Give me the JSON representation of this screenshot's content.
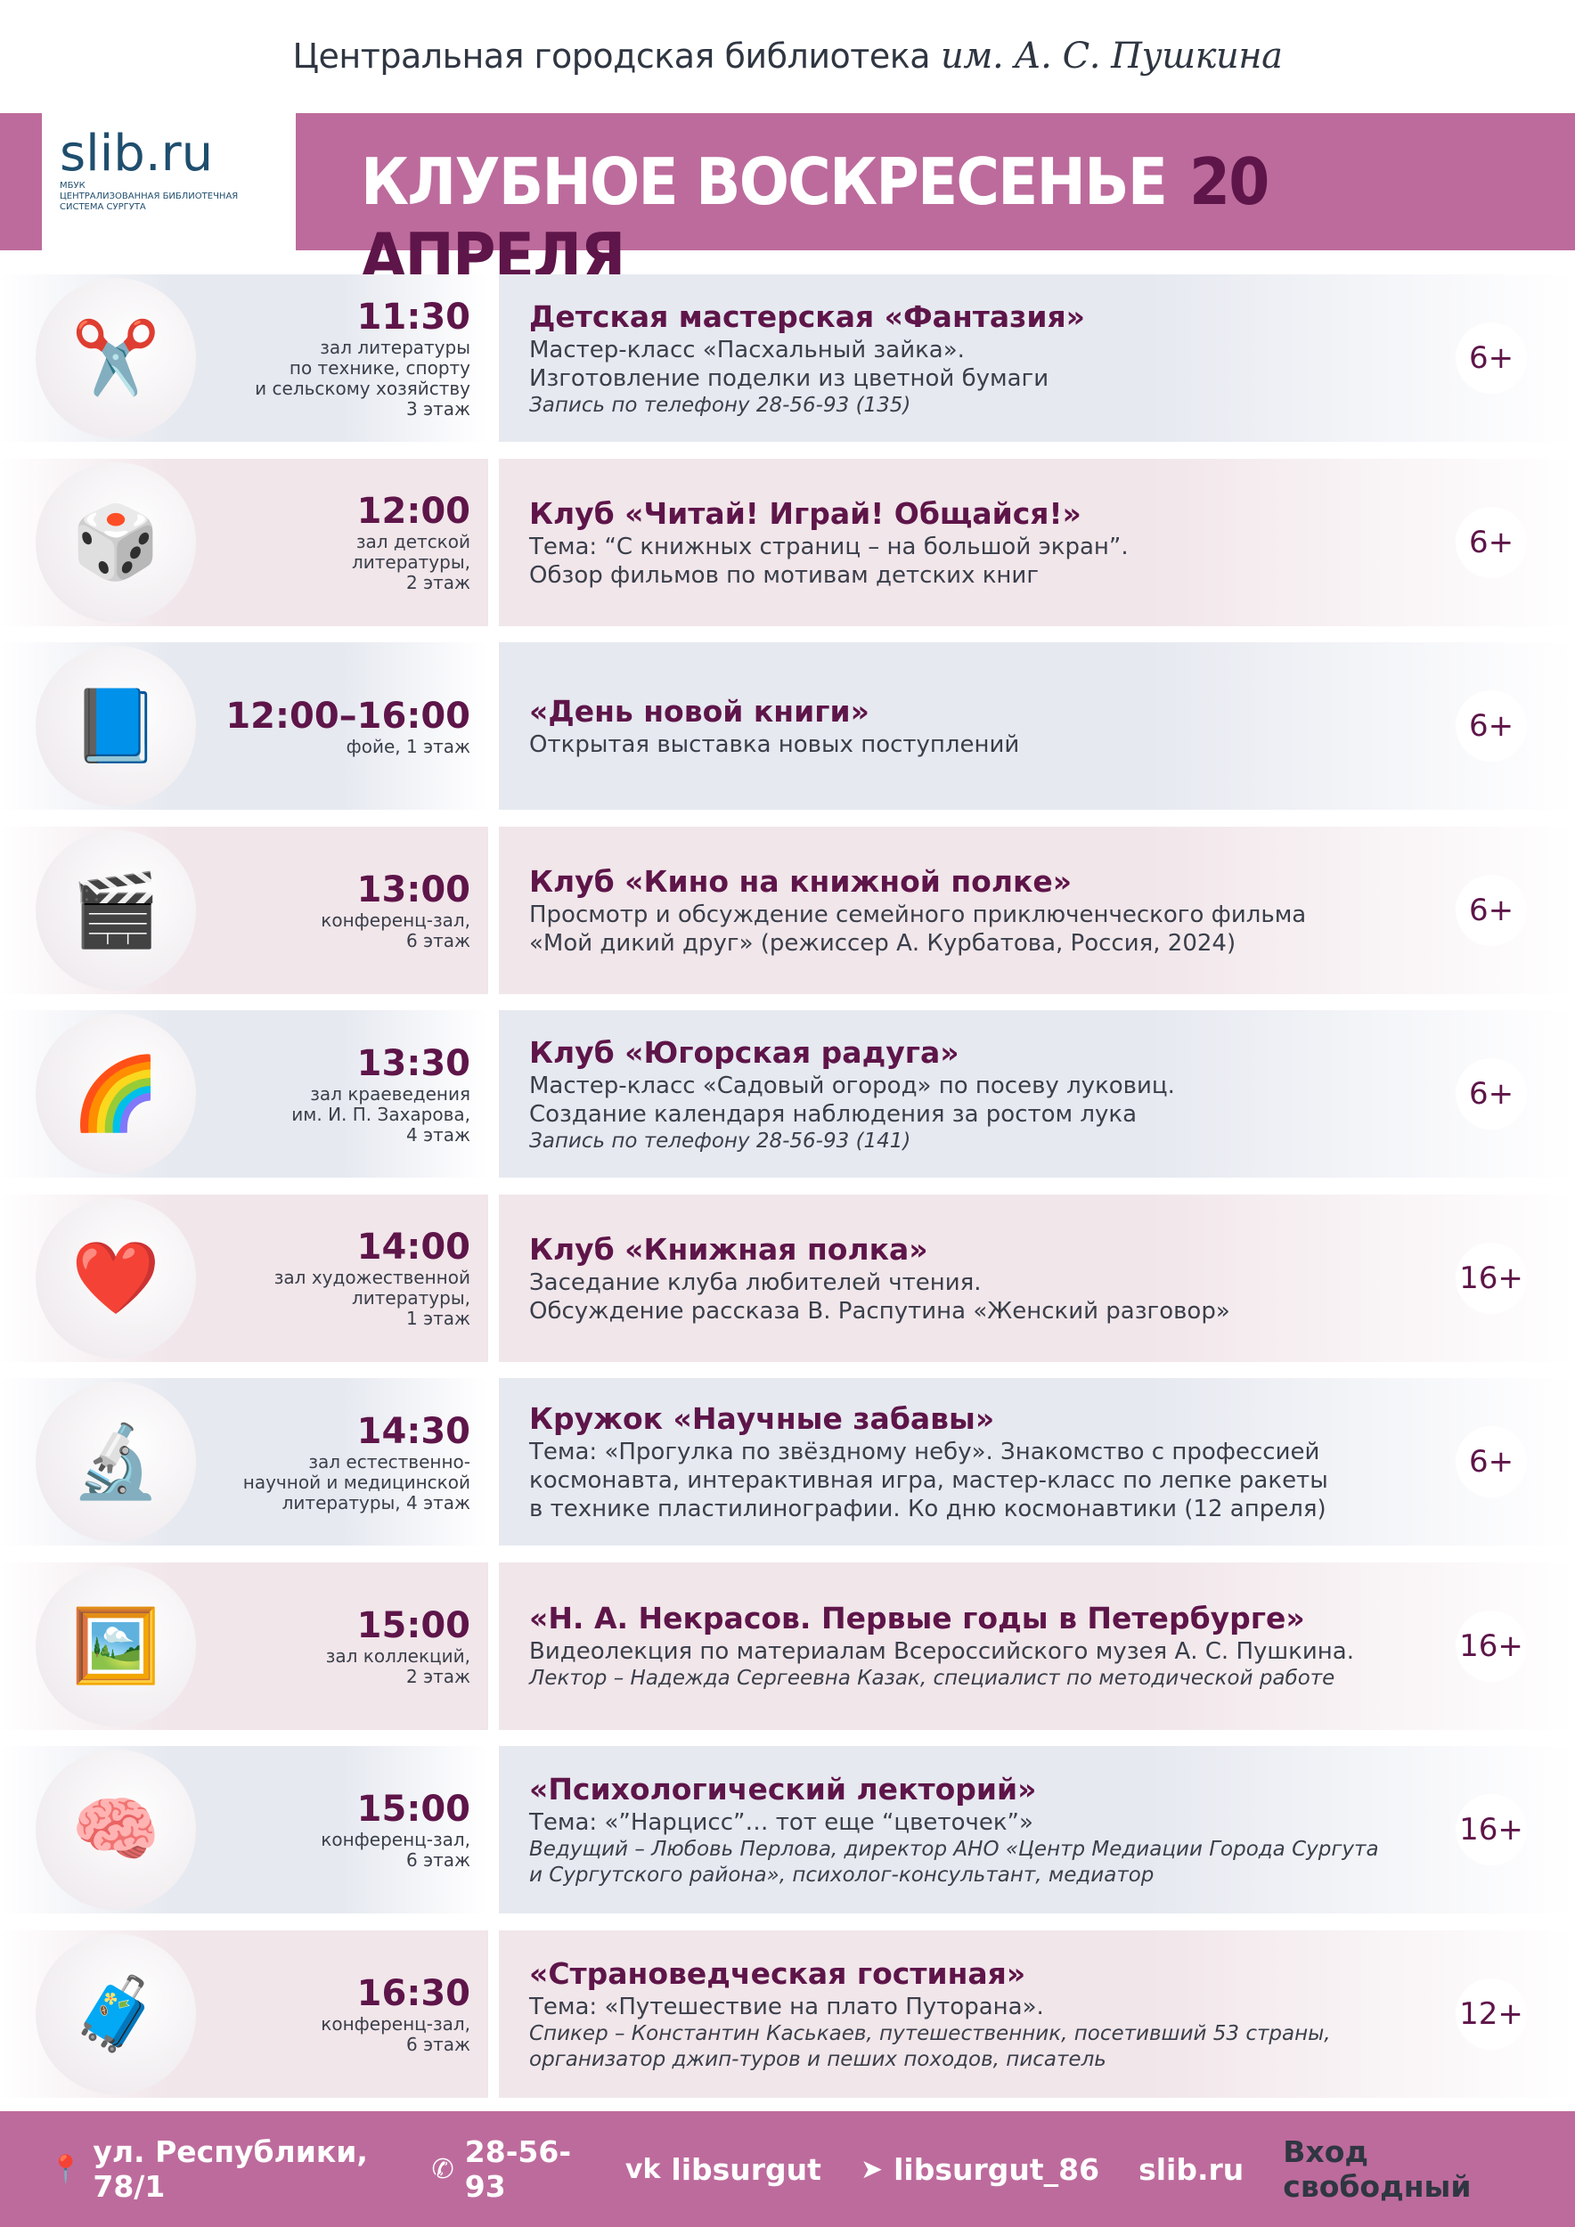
{
  "header": {
    "library": "Центральная городская библиотека",
    "signature": "им. А. С. Пушкина"
  },
  "banner": {
    "logo_mark": "slib",
    "logo_domain": ".ru",
    "logo_sub": [
      "МБУК",
      "ЦЕНТРАЛИЗОВАННАЯ БИБЛИОТЕЧНАЯ",
      "СИСТЕМА СУРГУТА"
    ],
    "title": "КЛУБНОЕ ВОСКРЕСЕНЬЕ",
    "date": "20 АПРЕЛЯ"
  },
  "colors": {
    "accent": "#bd6b9c",
    "dark": "#5e1549",
    "row_blue": "#e6e9f0",
    "row_pink": "#f1e6ea"
  },
  "events": [
    {
      "icon": "scissors-paper-icon",
      "glyph": "✂️",
      "time": "11:30",
      "location": [
        "зал литературы",
        "по технике, спорту",
        "и сельскому хозяйству",
        "3 этаж"
      ],
      "title": "Детская мастерская «Фантазия»",
      "desc": [
        "Мастер-класс «Пасхальный зайка».",
        "Изготовление поделки из цветной бумаги"
      ],
      "note": [
        "Запись по телефону 28-56-93 (135)"
      ],
      "age": "6+"
    },
    {
      "icon": "dice-icon",
      "glyph": "🎲",
      "time": "12:00",
      "location": [
        "зал детской",
        "литературы,",
        "2 этаж"
      ],
      "title": "Клуб «Читай! Играй! Общайся!»",
      "desc": [
        "Тема: “С книжных страниц – на большой экран”.",
        "Обзор фильмов по мотивам детских книг"
      ],
      "note": [],
      "age": "6+"
    },
    {
      "icon": "new-book-icon",
      "glyph": "📘",
      "time": "12:00–16:00",
      "location": [
        "фойе, 1 этаж"
      ],
      "title": "«День новой книги»",
      "desc": [
        "Открытая выставка новых поступлений"
      ],
      "note": [],
      "age": "6+"
    },
    {
      "icon": "clapperboard-icon",
      "glyph": "🎬",
      "time": "13:00",
      "location": [
        "конференц-зал,",
        "6 этаж"
      ],
      "title": "Клуб «Кино на книжной полке»",
      "desc": [
        "Просмотр и обсуждение семейного приключенческого фильма",
        "«Мой дикий друг» (режиссер А. Курбатова, Россия, 2024)"
      ],
      "note": [],
      "age": "6+"
    },
    {
      "icon": "rainbow-icon",
      "glyph": "🌈",
      "time": "13:30",
      "location": [
        "зал краеведения",
        "им. И. П. Захарова,",
        "4 этаж"
      ],
      "title": "Клуб «Югорская радуга»",
      "desc": [
        "Мастер-класс «Садовый огород» по посеву луковиц.",
        "Создание календаря наблюдения за ростом лука"
      ],
      "note": [
        "Запись по телефону 28-56-93 (141)"
      ],
      "age": "6+"
    },
    {
      "icon": "heart-books-icon",
      "glyph": "❤️",
      "time": "14:00",
      "location": [
        "зал художественной",
        "литературы,",
        "1 этаж"
      ],
      "title": "Клуб «Книжная полка»",
      "desc": [
        "Заседание клуба любителей чтения.",
        "Обсуждение рассказа В. Распутина «Женский разговор»"
      ],
      "note": [],
      "age": "16+"
    },
    {
      "icon": "science-icon",
      "glyph": "🔬",
      "time": "14:30",
      "location": [
        "зал естественно-",
        "научной и медицинской",
        "литературы, 4 этаж"
      ],
      "title": "Кружок «Научные забавы»",
      "desc": [
        "Тема: «Прогулка по звёздному небу». Знакомство с профессией",
        "космонавта, интерактивная игра, мастер-класс по лепке ракеты",
        "в технике пластилинографии. Ко дню космонавтики (12 апреля)"
      ],
      "note": [],
      "age": "6+"
    },
    {
      "icon": "pushkin-portrait-icon",
      "glyph": "🖼️",
      "time": "15:00",
      "location": [
        "зал коллекций,",
        "2 этаж"
      ],
      "title": "«Н. А. Некрасов. Первые годы в Петербурге»",
      "desc": [
        "Видеолекция по материалам Всероссийского музея А. С. Пушкина."
      ],
      "note": [
        "Лектор – Надежда Сергеевна Казак, специалист по методической работе"
      ],
      "age": "16+"
    },
    {
      "icon": "head-gears-icon",
      "glyph": "🧠",
      "time": "15:00",
      "location": [
        "конференц-зал,",
        "6 этаж"
      ],
      "title": "«Психологический лекторий»",
      "desc": [
        "Тема: «”Нарцисс”… тот еще “цветочек”»"
      ],
      "note": [
        "Ведущий – Любовь Перлова, директор АНО «Центр Медиации Города Сургута",
        "и Сургутского района», психолог-консультант, медиатор"
      ],
      "age": "16+"
    },
    {
      "icon": "suitcase-icon",
      "glyph": "🧳",
      "time": "16:30",
      "location": [
        "конференц-зал,",
        "6 этаж"
      ],
      "title": "«Страноведческая гостиная»",
      "desc": [
        "Тема: «Путешествие на плато Путорана»."
      ],
      "note": [
        "Спикер – Константин Каськаев, путешественник, посетивший 53 страны,",
        "организатор джип-туров и пеших походов, писатель"
      ],
      "age": "12+"
    }
  ],
  "footer": {
    "address": "ул. Республики, 78/1",
    "phone": "28-56-93",
    "vk": "libsurgut",
    "telegram": "libsurgut_86",
    "site": "slib.ru",
    "entry": "Вход свободный"
  }
}
